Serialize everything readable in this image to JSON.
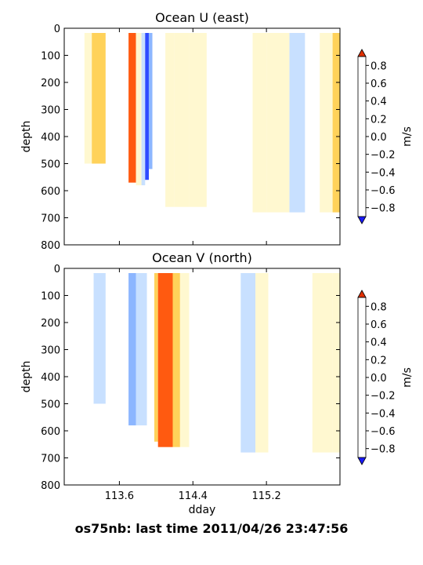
{
  "chart_data": [
    {
      "type": "heatmap",
      "title": "Ocean U (east)",
      "ylabel": "depth",
      "xlabel": "",
      "ylim": [
        800,
        0
      ],
      "xlim": [
        113.0,
        116.0
      ],
      "yticks": [
        "0",
        "100",
        "200",
        "300",
        "400",
        "500",
        "600",
        "700",
        "800"
      ],
      "xticks": [],
      "colorbar": {
        "label": "m/s",
        "ticks": [
          "0.8",
          "0.6",
          "0.4",
          "0.2",
          "0.0",
          "−0.2",
          "−0.4",
          "−0.6",
          "−0.8"
        ],
        "levels": [
          -0.8,
          -0.6,
          -0.4,
          -0.2,
          0.0,
          0.2,
          0.4,
          0.6,
          0.8
        ],
        "colors": [
          "#2f4bff",
          "#5e8cff",
          "#8cb6ff",
          "#c8e0ff",
          "#ffffff",
          "#fff8d0",
          "#ffd25a",
          "#ffa030",
          "#ff5a10"
        ]
      },
      "series": [
        {
          "x_start": 113.09,
          "x_end": 113.22,
          "max_depth": 100,
          "value": 0.0
        },
        {
          "x_start": 113.22,
          "x_end": 113.3,
          "max_depth": 500,
          "value": 0.1
        },
        {
          "x_start": 113.3,
          "x_end": 113.45,
          "max_depth": 500,
          "value": 0.3
        },
        {
          "x_start": 113.7,
          "x_end": 113.78,
          "max_depth": 570,
          "value": 0.7
        },
        {
          "x_start": 113.78,
          "x_end": 113.84,
          "max_depth": 580,
          "value": 0.1
        },
        {
          "x_start": 113.84,
          "x_end": 113.88,
          "max_depth": 580,
          "value": -0.3
        },
        {
          "x_start": 113.88,
          "x_end": 113.92,
          "max_depth": 560,
          "value": -0.9
        },
        {
          "x_start": 113.92,
          "x_end": 113.96,
          "max_depth": 520,
          "value": -0.4
        },
        {
          "x_start": 113.96,
          "x_end": 114.1,
          "max_depth": 640,
          "value": -0.1
        },
        {
          "x_start": 114.1,
          "x_end": 114.2,
          "max_depth": 660,
          "value": 0.1
        },
        {
          "x_start": 114.2,
          "x_end": 114.36,
          "max_depth": 660,
          "value": 0.1
        },
        {
          "x_start": 114.36,
          "x_end": 114.55,
          "max_depth": 660,
          "value": 0.1
        },
        {
          "x_start": 114.55,
          "x_end": 114.8,
          "max_depth": 680,
          "value": -0.1
        },
        {
          "x_start": 114.8,
          "x_end": 115.05,
          "max_depth": 680,
          "value": -0.1
        },
        {
          "x_start": 115.05,
          "x_end": 115.2,
          "max_depth": 680,
          "value": 0.1
        },
        {
          "x_start": 115.2,
          "x_end": 115.45,
          "max_depth": 680,
          "value": 0.1
        },
        {
          "x_start": 115.45,
          "x_end": 115.62,
          "max_depth": 680,
          "value": -0.3
        },
        {
          "x_start": 115.62,
          "x_end": 115.78,
          "max_depth": 780,
          "value": -0.1
        },
        {
          "x_start": 115.78,
          "x_end": 115.92,
          "max_depth": 680,
          "value": 0.1
        },
        {
          "x_start": 115.92,
          "x_end": 116.0,
          "max_depth": 680,
          "value": 0.3
        }
      ]
    },
    {
      "type": "heatmap",
      "title": "Ocean V (north)",
      "ylabel": "depth",
      "xlabel": "dday",
      "ylim": [
        800,
        0
      ],
      "xlim": [
        113.0,
        116.0
      ],
      "yticks": [
        "0",
        "100",
        "200",
        "300",
        "400",
        "500",
        "600",
        "700",
        "800"
      ],
      "xticks": [
        "113.6",
        "114.4",
        "115.2"
      ],
      "colorbar": {
        "label": "m/s",
        "ticks": [
          "0.8",
          "0.6",
          "0.4",
          "0.2",
          "0.0",
          "−0.2",
          "−0.4",
          "−0.6",
          "−0.8"
        ],
        "levels": [
          -0.8,
          -0.6,
          -0.4,
          -0.2,
          0.0,
          0.2,
          0.4,
          0.6,
          0.8
        ],
        "colors": [
          "#2f4bff",
          "#5e8cff",
          "#8cb6ff",
          "#c8e0ff",
          "#ffffff",
          "#fff8d0",
          "#ffd25a",
          "#ffa030",
          "#ff5a10"
        ]
      },
      "series": [
        {
          "x_start": 113.07,
          "x_end": 113.22,
          "max_depth": 100,
          "value": 0.0
        },
        {
          "x_start": 113.22,
          "x_end": 113.32,
          "max_depth": 500,
          "value": -0.1
        },
        {
          "x_start": 113.32,
          "x_end": 113.45,
          "max_depth": 500,
          "value": -0.3
        },
        {
          "x_start": 113.7,
          "x_end": 113.78,
          "max_depth": 580,
          "value": -0.5
        },
        {
          "x_start": 113.78,
          "x_end": 113.9,
          "max_depth": 580,
          "value": -0.3
        },
        {
          "x_start": 113.9,
          "x_end": 113.98,
          "max_depth": 600,
          "value": 0.0
        },
        {
          "x_start": 113.98,
          "x_end": 114.02,
          "max_depth": 640,
          "value": 0.3
        },
        {
          "x_start": 114.02,
          "x_end": 114.18,
          "max_depth": 660,
          "value": 0.7
        },
        {
          "x_start": 114.18,
          "x_end": 114.26,
          "max_depth": 660,
          "value": 0.3
        },
        {
          "x_start": 114.26,
          "x_end": 114.36,
          "max_depth": 660,
          "value": 0.1
        },
        {
          "x_start": 114.36,
          "x_end": 114.6,
          "max_depth": 680,
          "value": -0.1
        },
        {
          "x_start": 114.6,
          "x_end": 114.92,
          "max_depth": 680,
          "value": -0.1
        },
        {
          "x_start": 114.92,
          "x_end": 115.08,
          "max_depth": 680,
          "value": -0.3
        },
        {
          "x_start": 115.08,
          "x_end": 115.22,
          "max_depth": 680,
          "value": 0.1
        },
        {
          "x_start": 115.22,
          "x_end": 115.45,
          "max_depth": 680,
          "value": -0.1
        },
        {
          "x_start": 115.45,
          "x_end": 115.7,
          "max_depth": 780,
          "value": -0.1
        },
        {
          "x_start": 115.7,
          "x_end": 115.92,
          "max_depth": 680,
          "value": 0.1
        },
        {
          "x_start": 115.92,
          "x_end": 116.0,
          "max_depth": 680,
          "value": 0.1
        }
      ]
    }
  ],
  "footer": "os75nb: last time 2011/04/26 23:47:56"
}
